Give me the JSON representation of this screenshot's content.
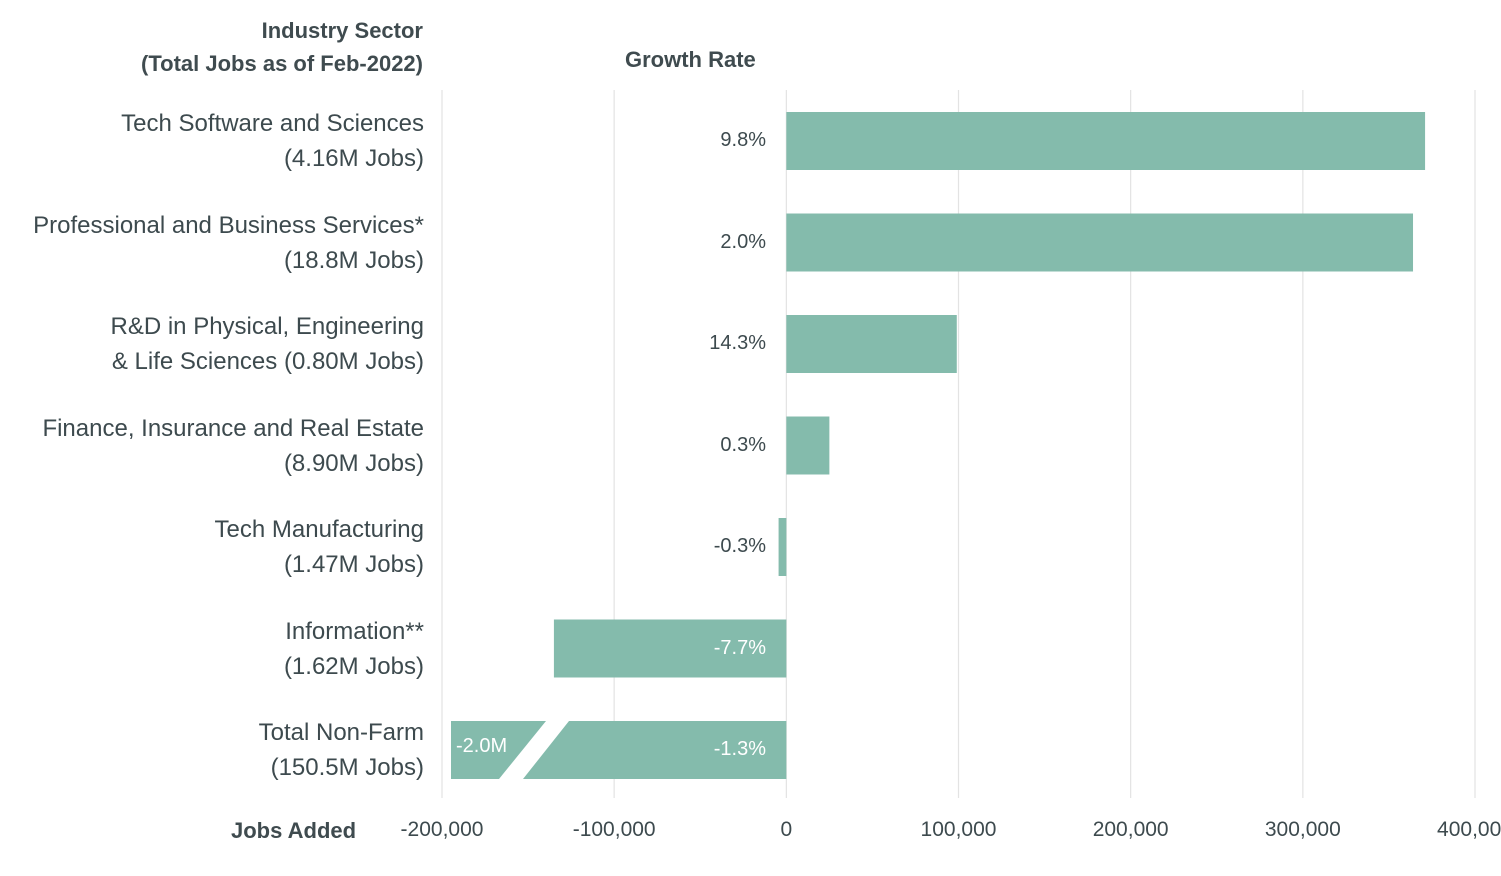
{
  "chart_data": {
    "type": "bar",
    "orientation": "horizontal",
    "header_left": [
      "Industry Sector",
      "(Total Jobs as of Feb-2022)"
    ],
    "header_growth": "Growth Rate",
    "xlabel": "Jobs Added",
    "xlim": [
      -200000,
      400000
    ],
    "xticks": [
      {
        "value": -200000,
        "label": "-200,000"
      },
      {
        "value": -100000,
        "label": "-100,000"
      },
      {
        "value": 0,
        "label": "0"
      },
      {
        "value": 100000,
        "label": "100,000"
      },
      {
        "value": 200000,
        "label": "200,000"
      },
      {
        "value": 300000,
        "label": "300,000"
      },
      {
        "value": 400000,
        "label": "400,000"
      }
    ],
    "grid": true,
    "bar_color": "#84bbac",
    "categories": [
      {
        "line1": "Tech Software and Sciences",
        "line2": "(4.16M Jobs)",
        "value": 371000,
        "growth": "9.8%"
      },
      {
        "line1": "Professional and Business Services*",
        "line2": "(18.8M Jobs)",
        "value": 364000,
        "growth": "2.0%"
      },
      {
        "line1": "R&D in Physical, Engineering",
        "line2": "& Life Sciences (0.80M Jobs)",
        "value": 99000,
        "growth": "14.3%"
      },
      {
        "line1": "Finance, Insurance and Real Estate",
        "line2": "(8.90M Jobs)",
        "value": 25000,
        "growth": "0.3%"
      },
      {
        "line1": "Tech Manufacturing",
        "line2": "(1.47M Jobs)",
        "value": -4500,
        "growth": "-0.3%"
      },
      {
        "line1": "Information**",
        "line2": "(1.62M Jobs)",
        "value": -135000,
        "growth": "-7.7%"
      },
      {
        "line1": "Total Non-Farm",
        "line2": "(150.5M Jobs)",
        "value": -2000000,
        "growth": "-1.3%",
        "broken_axis": true,
        "break_label": "-2.0M"
      }
    ]
  }
}
